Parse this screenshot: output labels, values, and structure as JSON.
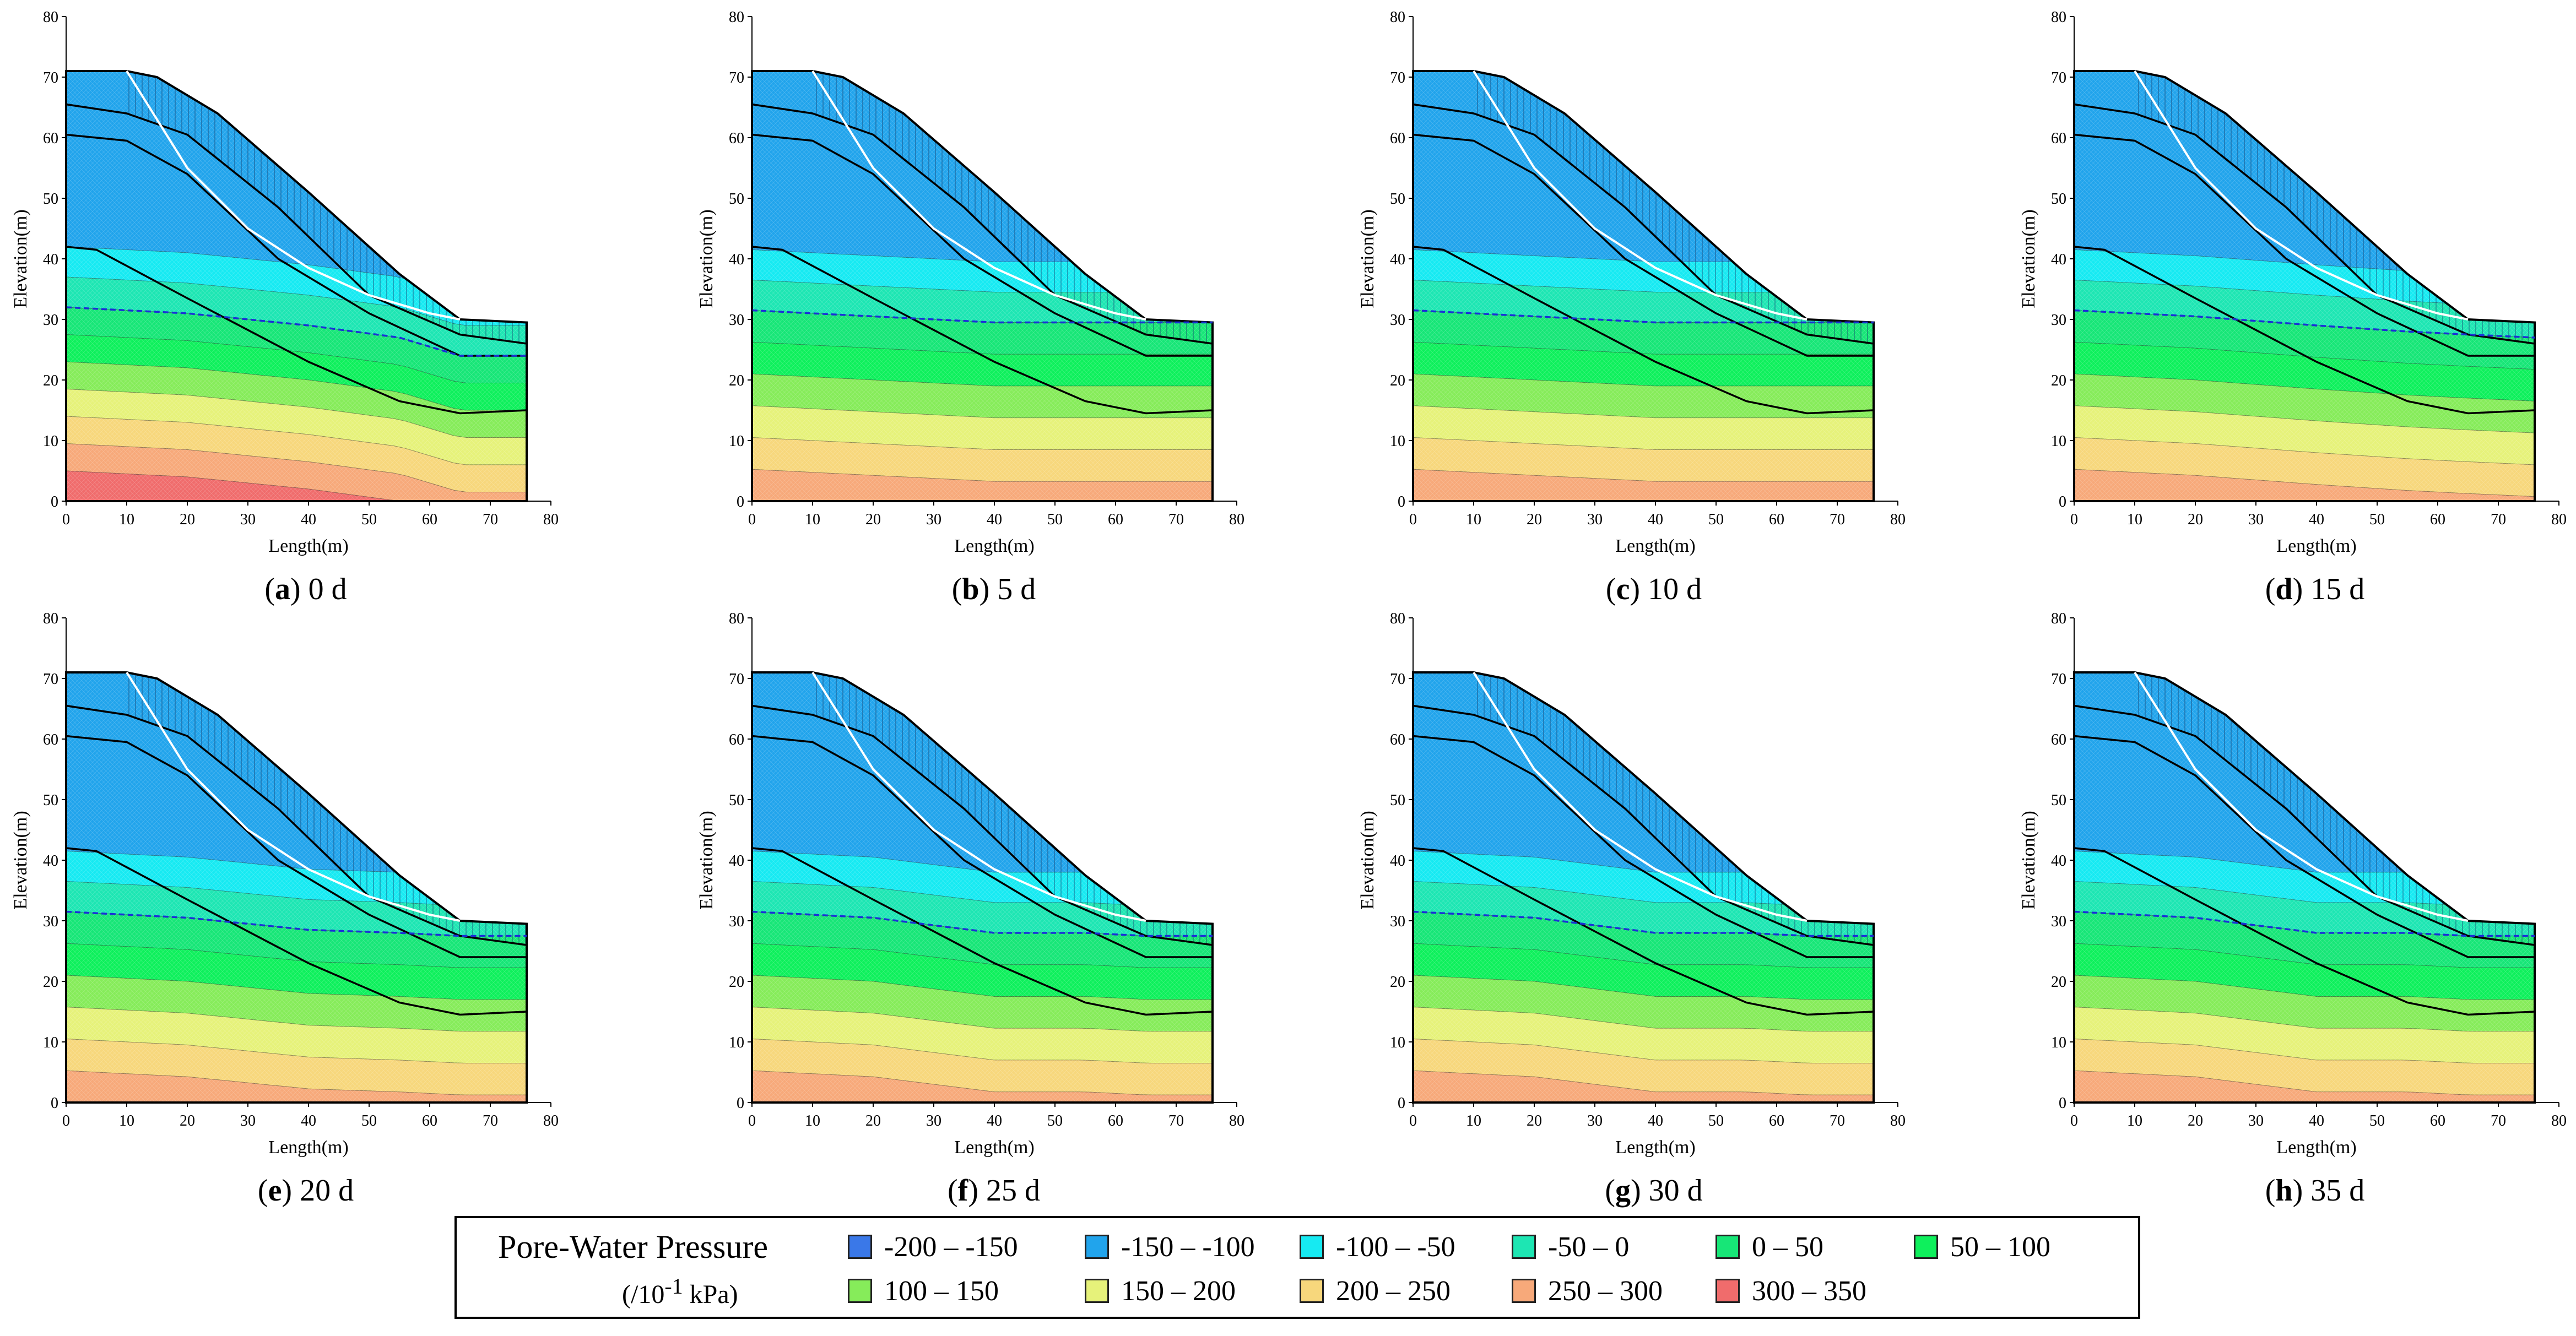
{
  "figure": {
    "axis_x_label": "Length(m)",
    "axis_y_label": "Elevation(m)",
    "x_ticks": [
      "0",
      "10",
      "20",
      "30",
      "40",
      "50",
      "60",
      "70",
      "80"
    ],
    "y_ticks": [
      "0",
      "10",
      "20",
      "30",
      "40",
      "50",
      "60",
      "70",
      "80"
    ]
  },
  "legend": {
    "title": "Pore-Water Pressure",
    "unit_prefix": "(/10",
    "unit_exp": "-1",
    "unit_suffix": " kPa)",
    "items": [
      {
        "label": "-200 – -150",
        "color": "#3a78e8"
      },
      {
        "label": "-150 – -100",
        "color": "#21a4ec"
      },
      {
        "label": "-100 – -50",
        "color": "#16eaf2"
      },
      {
        "label": "-50 – 0",
        "color": "#1de6b3"
      },
      {
        "label": "0 – 50",
        "color": "#17e677"
      },
      {
        "label": "50 – 100",
        "color": "#0ef05c"
      },
      {
        "label": "100 – 150",
        "color": "#86ec5a"
      },
      {
        "label": "150 – 200",
        "color": "#e6f27a"
      },
      {
        "label": "200 – 250",
        "color": "#f7d77c"
      },
      {
        "label": "250 – 300",
        "color": "#f7a97a"
      },
      {
        "label": "300 – 350",
        "color": "#f06c6c"
      }
    ]
  },
  "chart_data": [
    {
      "type": "contour",
      "panel": "a",
      "title": "0 d",
      "xlabel": "Length(m)",
      "ylabel": "Elevation(m)",
      "xlim": [
        0,
        80
      ],
      "ylim": [
        0,
        80
      ],
      "water_table": [
        [
          0,
          32
        ],
        [
          20,
          31
        ],
        [
          40,
          29
        ],
        [
          55,
          27
        ],
        [
          65,
          24
        ],
        [
          76,
          24
        ]
      ],
      "pressure_top": -150,
      "pressure_bottom": 350
    },
    {
      "type": "contour",
      "panel": "b",
      "title": "5 d",
      "xlabel": "Length(m)",
      "ylabel": "Elevation(m)",
      "xlim": [
        0,
        80
      ],
      "ylim": [
        0,
        80
      ],
      "water_table": [
        [
          0,
          31.5
        ],
        [
          20,
          30.5
        ],
        [
          40,
          29.5
        ],
        [
          55,
          29.5
        ],
        [
          65,
          29.5
        ],
        [
          76,
          29.5
        ]
      ],
      "pressure_top": -150,
      "pressure_bottom": 300
    },
    {
      "type": "contour",
      "panel": "c",
      "title": "10 d",
      "xlabel": "Length(m)",
      "ylabel": "Elevation(m)",
      "xlim": [
        0,
        80
      ],
      "ylim": [
        0,
        80
      ],
      "water_table": [
        [
          0,
          31.5
        ],
        [
          20,
          30.5
        ],
        [
          40,
          29.5
        ],
        [
          55,
          29.5
        ],
        [
          65,
          29.5
        ],
        [
          76,
          29.5
        ]
      ],
      "pressure_top": -150,
      "pressure_bottom": 300
    },
    {
      "type": "contour",
      "panel": "d",
      "title": "15 d",
      "xlabel": "Length(m)",
      "ylabel": "Elevation(m)",
      "xlim": [
        0,
        80
      ],
      "ylim": [
        0,
        80
      ],
      "water_table": [
        [
          0,
          31.5
        ],
        [
          20,
          30.5
        ],
        [
          40,
          29
        ],
        [
          55,
          28
        ],
        [
          65,
          27.5
        ],
        [
          76,
          27
        ]
      ],
      "pressure_top": -150,
      "pressure_bottom": 300
    },
    {
      "type": "contour",
      "panel": "e",
      "title": "20 d",
      "xlabel": "Length(m)",
      "ylabel": "Elevation(m)",
      "xlim": [
        0,
        80
      ],
      "ylim": [
        0,
        80
      ],
      "water_table": [
        [
          0,
          31.5
        ],
        [
          20,
          30.5
        ],
        [
          40,
          28.5
        ],
        [
          55,
          28
        ],
        [
          65,
          27.5
        ],
        [
          76,
          27.5
        ]
      ],
      "pressure_top": -150,
      "pressure_bottom": 300
    },
    {
      "type": "contour",
      "panel": "f",
      "title": "25 d",
      "xlabel": "Length(m)",
      "ylabel": "Elevation(m)",
      "xlim": [
        0,
        80
      ],
      "ylim": [
        0,
        80
      ],
      "water_table": [
        [
          0,
          31.5
        ],
        [
          20,
          30.5
        ],
        [
          40,
          28
        ],
        [
          55,
          28
        ],
        [
          65,
          27.5
        ],
        [
          76,
          27.5
        ]
      ],
      "pressure_top": -150,
      "pressure_bottom": 300
    },
    {
      "type": "contour",
      "panel": "g",
      "title": "30 d",
      "xlabel": "Length(m)",
      "ylabel": "Elevation(m)",
      "xlim": [
        0,
        80
      ],
      "ylim": [
        0,
        80
      ],
      "water_table": [
        [
          0,
          31.5
        ],
        [
          20,
          30.5
        ],
        [
          40,
          28
        ],
        [
          55,
          28
        ],
        [
          65,
          27.5
        ],
        [
          76,
          27.5
        ]
      ],
      "pressure_top": -150,
      "pressure_bottom": 300
    },
    {
      "type": "contour",
      "panel": "h",
      "title": "35 d",
      "xlabel": "Length(m)",
      "ylabel": "Elevation(m)",
      "xlim": [
        0,
        80
      ],
      "ylim": [
        0,
        80
      ],
      "water_table": [
        [
          0,
          31.5
        ],
        [
          20,
          30.5
        ],
        [
          40,
          28
        ],
        [
          55,
          28
        ],
        [
          65,
          27.5
        ],
        [
          76,
          27.5
        ]
      ],
      "pressure_top": -150,
      "pressure_bottom": 300
    }
  ]
}
